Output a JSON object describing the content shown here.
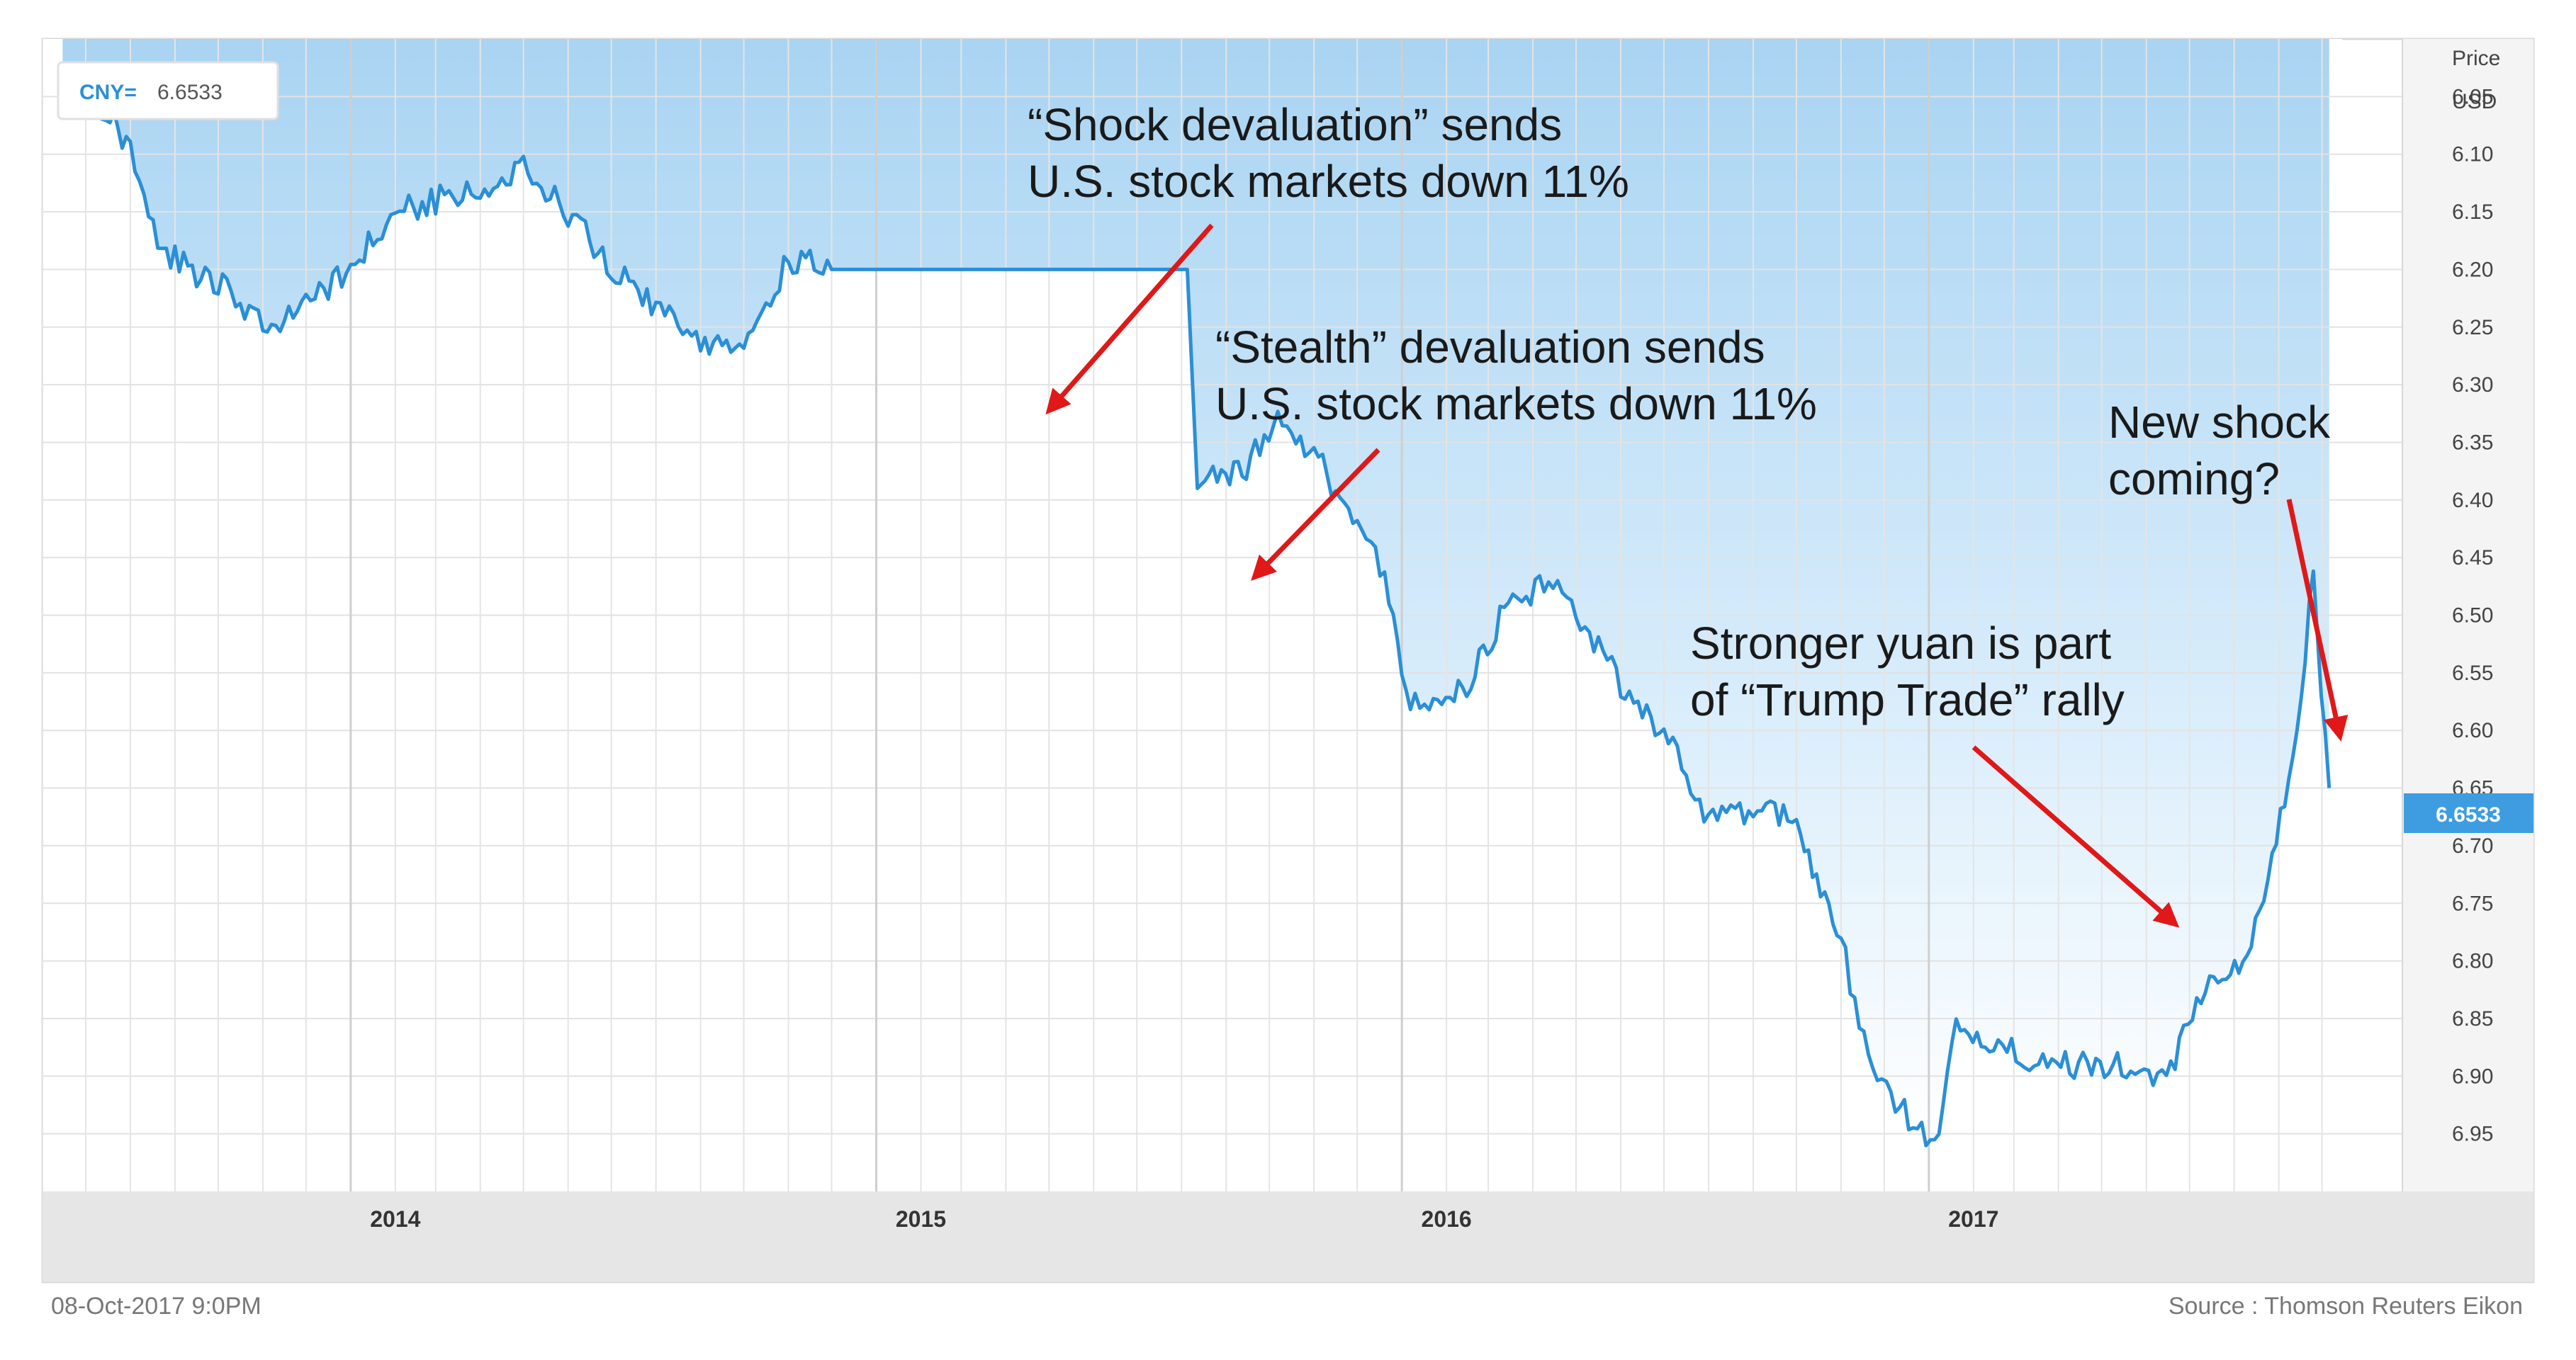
{
  "chart_data": {
    "type": "line",
    "ticker_label": "CNY=",
    "ticker_value": "6.6533",
    "current_price_label": "6.6533",
    "axis_title_line1": "Price",
    "axis_title_line2": "USD",
    "y_ticks": [
      "6.05",
      "6.10",
      "6.15",
      "6.20",
      "6.25",
      "6.30",
      "6.35",
      "6.40",
      "6.45",
      "6.50",
      "6.55",
      "6.60",
      "6.65",
      "6.70",
      "6.75",
      "6.80",
      "6.85",
      "6.90",
      "6.95"
    ],
    "y_inverted": true,
    "ylim": [
      6.0,
      7.0
    ],
    "x_ticks": [
      "2014",
      "2015",
      "2016",
      "2017"
    ],
    "xlim": [
      "2013-06",
      "2017-10"
    ],
    "grid": true,
    "series": [
      {
        "name": "CNY=",
        "color": "#2b8fd6",
        "x": [
          "2013-06-15",
          "2013-07-15",
          "2013-08-01",
          "2013-08-20",
          "2013-09-10",
          "2013-10-10",
          "2013-11-01",
          "2013-12-01",
          "2014-01-01",
          "2014-02-01",
          "2014-03-01",
          "2014-04-01",
          "2014-05-01",
          "2014-06-01",
          "2014-07-01",
          "2014-08-01",
          "2014-09-01",
          "2014-10-01",
          "2014-11-01",
          "2014-12-01",
          "2015-01-01",
          "2015-02-01",
          "2015-03-01",
          "2015-04-01",
          "2015-05-01",
          "2015-06-01",
          "2015-07-01",
          "2015-08-05",
          "2015-08-12",
          "2015-08-20",
          "2015-09-15",
          "2015-10-10",
          "2015-11-01",
          "2015-12-01",
          "2015-12-20",
          "2016-01-07",
          "2016-01-20",
          "2016-02-15",
          "2016-03-15",
          "2016-04-15",
          "2016-05-01",
          "2016-06-01",
          "2016-07-01",
          "2016-08-01",
          "2016-09-01",
          "2016-10-01",
          "2016-10-15",
          "2016-11-01",
          "2016-11-20",
          "2016-12-15",
          "2017-01-05",
          "2017-01-20",
          "2017-02-15",
          "2017-03-15",
          "2017-04-15",
          "2017-05-15",
          "2017-06-15",
          "2017-07-15",
          "2017-08-10",
          "2017-09-08",
          "2017-09-25",
          "2017-10-06"
        ],
        "y": [
          6.05,
          6.06,
          6.1,
          6.18,
          6.2,
          6.22,
          6.25,
          6.23,
          6.2,
          6.15,
          6.14,
          6.13,
          6.11,
          6.15,
          6.2,
          6.23,
          6.26,
          6.27,
          6.19,
          6.2,
          6.2,
          6.2,
          6.2,
          6.2,
          6.2,
          6.2,
          6.2,
          6.2,
          6.39,
          6.38,
          6.37,
          6.33,
          6.36,
          6.42,
          6.47,
          6.58,
          6.57,
          6.56,
          6.49,
          6.47,
          6.5,
          6.56,
          6.6,
          6.68,
          6.67,
          6.67,
          6.73,
          6.78,
          6.89,
          6.93,
          6.96,
          6.86,
          6.87,
          6.89,
          6.89,
          6.89,
          6.9,
          6.82,
          6.8,
          6.65,
          6.47,
          6.65
        ]
      }
    ]
  },
  "annotations": {
    "shock_line1": "“Shock devaluation” sends",
    "shock_line2": "U.S. stock markets down 11%",
    "stealth_line1": "“Stealth” devaluation sends",
    "stealth_line2": "U.S. stock markets down 11%",
    "trump_line1": "Stronger yuan is part",
    "trump_line2": "of “Trump Trade” rally",
    "newshock_line1": "New shock",
    "newshock_line2": "coming?"
  },
  "footer": {
    "timestamp": "08-Oct-2017 9:0PM",
    "source": "Source : Thomson Reuters Eikon"
  },
  "colors": {
    "line": "#2b8fd6",
    "arrow": "#e01818",
    "highlight_badge": "#3d9de0",
    "fill_top": "#b8dcf4"
  }
}
